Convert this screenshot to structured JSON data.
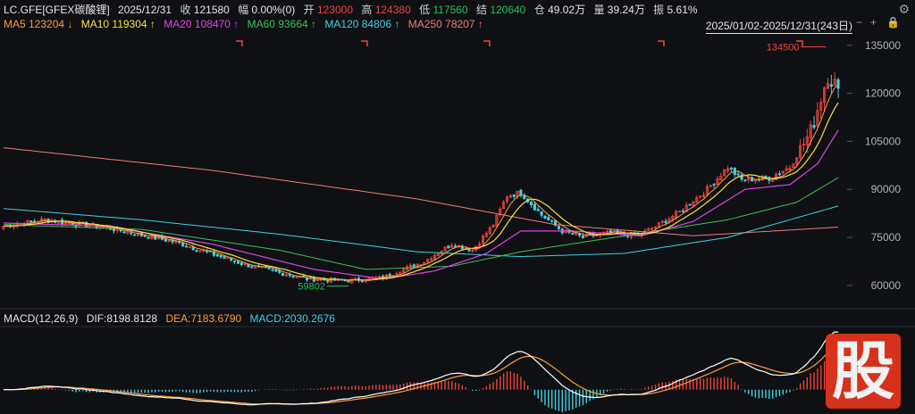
{
  "header": {
    "symbol": "LC.GFE[GFEX碳酸锂]",
    "date": "2025/12/31",
    "close_label": "收",
    "close": "121580",
    "amp_label": "幅",
    "amp": "0.00%(0)",
    "open_label": "开",
    "open": "123000",
    "high_label": "高",
    "high": "124380",
    "low_label": "低",
    "low": "117560",
    "settle_label": "结",
    "settle": "120640",
    "oi_label": "仓",
    "oi": "49.02万",
    "vol_label": "量",
    "vol": "39.24万",
    "swing_label": "振",
    "swing": "5.61%"
  },
  "ma_legend": [
    {
      "label": "MA5 123204 ↓",
      "color": "#ff9d3a"
    },
    {
      "label": "MA10 119304 ↑",
      "color": "#f7e14b"
    },
    {
      "label": "MA20 108470 ↑",
      "color": "#e043e6"
    },
    {
      "label": "MA60 93664 ↑",
      "color": "#39c25a"
    },
    {
      "label": "MA120 84806 ↑",
      "color": "#3fd2e6"
    },
    {
      "label": "MA250 78207 ↑",
      "color": "#f07c7c"
    }
  ],
  "range_label": "2025/01/02-2025/12/31(243日)",
  "macd_header": {
    "name": "MACD(12,26,9)",
    "dif": "DIF:8198.8128",
    "dea": "DEA:7183.6790",
    "macd": "MACD:2030.2676"
  },
  "colors": {
    "up": "#f0443c",
    "down": "#3fd2e6",
    "dif": "#ffffff",
    "dea": "#ff9d3a"
  },
  "icons": [
    "minus-icon",
    "plus-icon",
    "lock-icon",
    "settings-icon"
  ],
  "chart_data": {
    "type": "candlestick",
    "y_ticks": [
      135000,
      120000,
      105000,
      90000,
      75000,
      60000
    ],
    "y_range": [
      53000,
      138000
    ],
    "annotations": [
      {
        "text": "134500",
        "type": "max"
      },
      {
        "text": "59802",
        "type": "min"
      }
    ],
    "ma_end_values": {
      "MA5": 123204,
      "MA10": 119304,
      "MA20": 108470,
      "MA60": 93664,
      "MA120": 84806,
      "MA250": 78207
    },
    "close_keypoints": [
      {
        "i": 0,
        "v": 78500
      },
      {
        "i": 12,
        "v": 80500
      },
      {
        "i": 30,
        "v": 78000
      },
      {
        "i": 50,
        "v": 73500
      },
      {
        "i": 70,
        "v": 66500
      },
      {
        "i": 88,
        "v": 62000
      },
      {
        "i": 100,
        "v": 61500
      },
      {
        "i": 110,
        "v": 62500
      },
      {
        "i": 122,
        "v": 67500
      },
      {
        "i": 130,
        "v": 73000
      },
      {
        "i": 136,
        "v": 71000
      },
      {
        "i": 142,
        "v": 79000
      },
      {
        "i": 146,
        "v": 88000
      },
      {
        "i": 150,
        "v": 89000
      },
      {
        "i": 156,
        "v": 82000
      },
      {
        "i": 162,
        "v": 77000
      },
      {
        "i": 168,
        "v": 75000
      },
      {
        "i": 176,
        "v": 76500
      },
      {
        "i": 184,
        "v": 75500
      },
      {
        "i": 190,
        "v": 79000
      },
      {
        "i": 196,
        "v": 83000
      },
      {
        "i": 204,
        "v": 90000
      },
      {
        "i": 210,
        "v": 97000
      },
      {
        "i": 214,
        "v": 93000
      },
      {
        "i": 222,
        "v": 93500
      },
      {
        "i": 228,
        "v": 97000
      },
      {
        "i": 234,
        "v": 108000
      },
      {
        "i": 239,
        "v": 126000
      },
      {
        "i": 242,
        "v": 121580
      }
    ],
    "ma_keypoints": {
      "MA250": [
        [
          0,
          103000
        ],
        [
          60,
          96000
        ],
        [
          120,
          87000
        ],
        [
          160,
          79000
        ],
        [
          200,
          75500
        ],
        [
          242,
          78207
        ]
      ],
      "MA120": [
        [
          0,
          84000
        ],
        [
          40,
          80500
        ],
        [
          80,
          76000
        ],
        [
          120,
          70500
        ],
        [
          150,
          69000
        ],
        [
          180,
          70000
        ],
        [
          210,
          75000
        ],
        [
          242,
          84806
        ]
      ],
      "MA60": [
        [
          0,
          79000
        ],
        [
          40,
          77500
        ],
        [
          80,
          71000
        ],
        [
          105,
          65000
        ],
        [
          130,
          66000
        ],
        [
          150,
          70500
        ],
        [
          180,
          75500
        ],
        [
          210,
          80500
        ],
        [
          230,
          86000
        ],
        [
          242,
          93664
        ]
      ],
      "MA20": [
        [
          0,
          79500
        ],
        [
          30,
          78500
        ],
        [
          60,
          73000
        ],
        [
          90,
          65000
        ],
        [
          110,
          62000
        ],
        [
          125,
          64500
        ],
        [
          140,
          70000
        ],
        [
          150,
          77000
        ],
        [
          165,
          77000
        ],
        [
          185,
          75500
        ],
        [
          200,
          80000
        ],
        [
          215,
          90000
        ],
        [
          228,
          91500
        ],
        [
          236,
          98000
        ],
        [
          242,
          108470
        ]
      ]
    }
  }
}
